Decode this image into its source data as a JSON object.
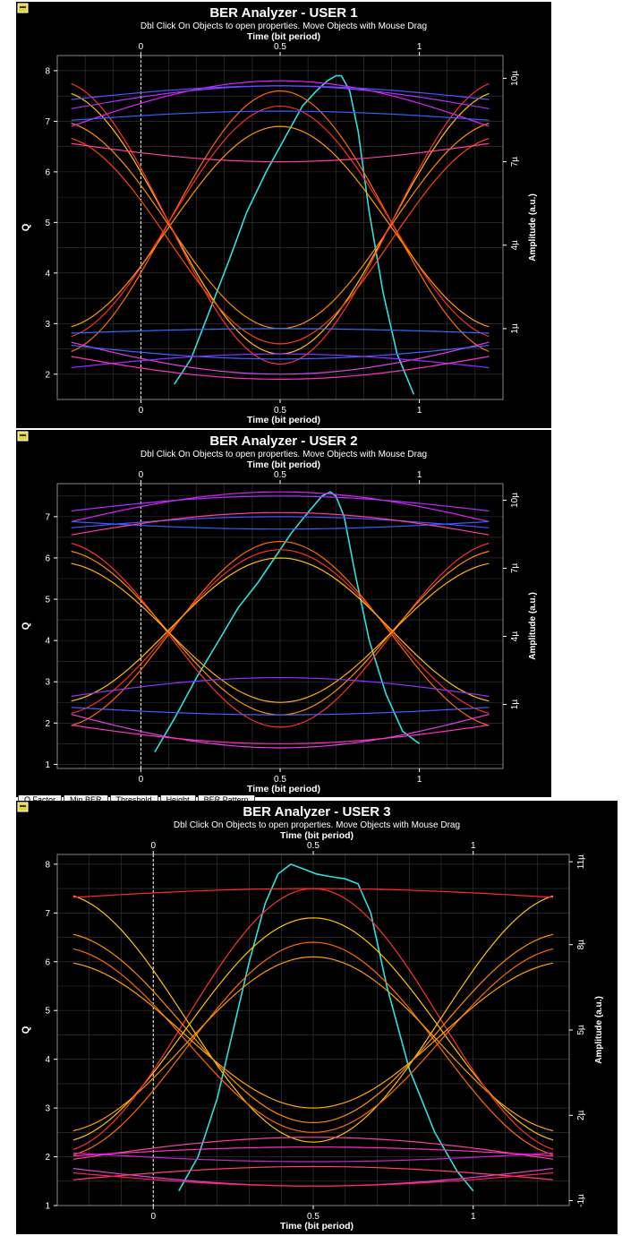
{
  "common": {
    "subtitle": "Dbl Click On Objects to open properties.  Move Objects with Mouse Drag",
    "top_xlabel": "Time (bit period)",
    "bottom_xlabel": "Time (bit period)",
    "left_ylabel": "Q",
    "right_ylabel": "Amplitude (a.u.)",
    "x_ticks": [
      0,
      0.5,
      1
    ],
    "x_tick_labels": [
      "0",
      "0.5",
      "1"
    ]
  },
  "tab_strip": {
    "tabs": [
      "Q Factor",
      "Min BER",
      "Threshold",
      "Height",
      "BER Pattern"
    ]
  },
  "colors": {
    "background": "#000000",
    "grid": "#3a3a3a",
    "axis": "#ffffff",
    "q_curve": "#2ee0e0"
  },
  "chart_data": [
    {
      "type": "line",
      "title": "BER Analyzer - USER 1",
      "xlim": [
        -0.3,
        1.3
      ],
      "ylim": [
        1.5,
        8.3
      ],
      "y_ticks": [
        2,
        3,
        4,
        5,
        6,
        7,
        8
      ],
      "right_ticks": [
        {
          "label": "1µ",
          "q": 2.9
        },
        {
          "label": "4µ",
          "q": 4.55
        },
        {
          "label": "7µ",
          "q": 6.2
        },
        {
          "label": "10µ",
          "q": 7.85
        }
      ],
      "series": [
        {
          "color": "#2ee0e0",
          "kind": "q",
          "x": [
            0.12,
            0.18,
            0.25,
            0.32,
            0.38,
            0.45,
            0.52,
            0.58,
            0.63,
            0.67,
            0.7,
            0.72,
            0.75,
            0.78,
            0.82,
            0.87,
            0.92,
            0.98
          ],
          "y": [
            1.8,
            2.3,
            3.3,
            4.3,
            5.2,
            6.0,
            6.7,
            7.3,
            7.6,
            7.8,
            7.9,
            7.9,
            7.6,
            6.8,
            5.2,
            3.6,
            2.4,
            1.6
          ]
        },
        {
          "color": "#ff6a00",
          "kind": "lh",
          "lo": 2.4,
          "hi": 7.6
        },
        {
          "color": "#ff2a2a",
          "kind": "lh",
          "lo": 2.7,
          "hi": 7.3
        },
        {
          "color": "#ff9a00",
          "kind": "lh",
          "lo": 2.9,
          "hi": 6.9
        },
        {
          "color": "#ffc400",
          "kind": "hl",
          "hi": 7.6,
          "lo": 2.4
        },
        {
          "color": "#ff8c00",
          "kind": "hl",
          "hi": 7.0,
          "lo": 2.9
        },
        {
          "color": "#ff3030",
          "kind": "hl",
          "hi": 7.8,
          "lo": 2.2
        },
        {
          "color": "#ff4400",
          "kind": "hl",
          "hi": 6.7,
          "lo": 2.6
        },
        {
          "color": "#e020ff",
          "kind": "hh",
          "base": 6.8,
          "amp": 1.0
        },
        {
          "color": "#b030ff",
          "kind": "hh",
          "base": 7.2,
          "amp": 0.5
        },
        {
          "color": "#5050ff",
          "kind": "hh",
          "base": 7.4,
          "amp": 0.3
        },
        {
          "color": "#ff3fa0",
          "kind": "hh",
          "base": 6.6,
          "amp": -0.4
        },
        {
          "color": "#3060ff",
          "kind": "hh",
          "base": 7.0,
          "amp": 0.2
        },
        {
          "color": "#e040e0",
          "kind": "ll",
          "base": 2.7,
          "amp": -0.7
        },
        {
          "color": "#4060ff",
          "kind": "ll",
          "base": 2.6,
          "amp": -0.3
        },
        {
          "color": "#9030ff",
          "kind": "ll",
          "base": 2.1,
          "amp": 0.3
        },
        {
          "color": "#3070ff",
          "kind": "ll",
          "base": 2.8,
          "amp": 0.1
        },
        {
          "color": "#ff30c0",
          "kind": "ll",
          "base": 2.4,
          "amp": -0.5
        }
      ]
    },
    {
      "type": "line",
      "title": "BER Analyzer - USER 2",
      "xlim": [
        -0.3,
        1.3
      ],
      "ylim": [
        0.9,
        7.8
      ],
      "y_ticks": [
        1,
        2,
        3,
        4,
        5,
        6,
        7
      ],
      "right_ticks": [
        {
          "label": "1µ",
          "q": 2.45
        },
        {
          "label": "4µ",
          "q": 4.1
        },
        {
          "label": "7µ",
          "q": 5.75
        },
        {
          "label": "10µ",
          "q": 7.4
        }
      ],
      "series": [
        {
          "color": "#2ee0e0",
          "kind": "q",
          "x": [
            0.05,
            0.12,
            0.2,
            0.28,
            0.35,
            0.42,
            0.48,
            0.54,
            0.6,
            0.65,
            0.68,
            0.7,
            0.73,
            0.77,
            0.82,
            0.88,
            0.94,
            1.0
          ],
          "y": [
            1.3,
            2.1,
            3.1,
            4.0,
            4.8,
            5.4,
            6.0,
            6.6,
            7.1,
            7.5,
            7.6,
            7.5,
            7.0,
            5.6,
            4.0,
            2.7,
            1.8,
            1.5
          ]
        },
        {
          "color": "#ff6a00",
          "kind": "lh",
          "lo": 1.9,
          "hi": 6.4
        },
        {
          "color": "#ff2a2a",
          "kind": "lh",
          "lo": 2.2,
          "hi": 6.2
        },
        {
          "color": "#ffc400",
          "kind": "lh",
          "lo": 2.5,
          "hi": 6.0
        },
        {
          "color": "#ff3030",
          "kind": "hl",
          "hi": 6.4,
          "lo": 1.9
        },
        {
          "color": "#ff8c00",
          "kind": "hl",
          "hi": 6.2,
          "lo": 2.2
        },
        {
          "color": "#ffb000",
          "kind": "hl",
          "hi": 5.9,
          "lo": 2.5
        },
        {
          "color": "#e020ff",
          "kind": "hh",
          "base": 6.8,
          "amp": 0.8
        },
        {
          "color": "#5050ff",
          "kind": "hh",
          "base": 6.7,
          "amp": 0.3
        },
        {
          "color": "#3060ff",
          "kind": "hh",
          "base": 6.9,
          "amp": -0.2
        },
        {
          "color": "#b030ff",
          "kind": "hh",
          "base": 7.1,
          "amp": 0.4
        },
        {
          "color": "#ff3fa0",
          "kind": "hh",
          "base": 6.5,
          "amp": 0.6
        },
        {
          "color": "#e040e0",
          "kind": "ll",
          "base": 2.3,
          "amp": -0.9
        },
        {
          "color": "#9030ff",
          "kind": "ll",
          "base": 2.6,
          "amp": 0.5
        },
        {
          "color": "#4060ff",
          "kind": "ll",
          "base": 2.4,
          "amp": -0.2
        },
        {
          "color": "#ff30c0",
          "kind": "ll",
          "base": 2.0,
          "amp": -0.5
        }
      ]
    },
    {
      "type": "line",
      "title": "BER Analyzer - USER 3",
      "xlim": [
        -0.3,
        1.3
      ],
      "ylim": [
        1.0,
        8.2
      ],
      "y_ticks": [
        1,
        2,
        3,
        4,
        5,
        6,
        7,
        8
      ],
      "right_ticks": [
        {
          "label": "-1µ",
          "q": 1.1
        },
        {
          "label": "2µ",
          "q": 2.85
        },
        {
          "label": "5µ",
          "q": 4.6
        },
        {
          "label": "8µ",
          "q": 6.35
        },
        {
          "label": "11µ",
          "q": 8.05
        }
      ],
      "series": [
        {
          "color": "#2ee0e0",
          "kind": "q",
          "x": [
            0.08,
            0.14,
            0.2,
            0.25,
            0.3,
            0.35,
            0.39,
            0.43,
            0.47,
            0.51,
            0.55,
            0.6,
            0.64,
            0.68,
            0.73,
            0.8,
            0.88,
            0.95,
            1.0
          ],
          "y": [
            1.3,
            2.0,
            3.2,
            4.6,
            6.0,
            7.2,
            7.8,
            8.0,
            7.9,
            7.8,
            7.75,
            7.7,
            7.6,
            7.0,
            5.5,
            3.8,
            2.5,
            1.7,
            1.3
          ]
        },
        {
          "color": "#ff6a00",
          "kind": "lh",
          "lo": 2.0,
          "hi": 6.4
        },
        {
          "color": "#ffc400",
          "kind": "lh",
          "lo": 2.3,
          "hi": 6.9
        },
        {
          "color": "#ff9a00",
          "kind": "lh",
          "lo": 2.5,
          "hi": 6.1
        },
        {
          "color": "#ff3030",
          "kind": "lh",
          "lo": 2.1,
          "hi": 7.5
        },
        {
          "color": "#ffc400",
          "kind": "hl",
          "hi": 7.4,
          "lo": 2.3
        },
        {
          "color": "#ff8c00",
          "kind": "hl",
          "hi": 6.6,
          "lo": 2.7
        },
        {
          "color": "#ff6a00",
          "kind": "hl",
          "hi": 6.3,
          "lo": 2.5
        },
        {
          "color": "#ffa500",
          "kind": "hl",
          "hi": 6.0,
          "lo": 3.0
        },
        {
          "color": "#ff2a2a",
          "kind": "hh",
          "base": 7.3,
          "amp": 0.2
        },
        {
          "color": "#ff3fa0",
          "kind": "ll",
          "base": 1.9,
          "amp": 0.5
        },
        {
          "color": "#e040e0",
          "kind": "ll",
          "base": 1.8,
          "amp": -0.4
        },
        {
          "color": "#ff30c0",
          "kind": "ll",
          "base": 2.0,
          "amp": 0.2
        },
        {
          "color": "#ff4070",
          "kind": "ll",
          "base": 1.5,
          "amp": 0.3
        },
        {
          "color": "#d020d0",
          "kind": "ll",
          "base": 2.1,
          "amp": -0.2
        },
        {
          "color": "#ff2060",
          "kind": "ll",
          "base": 1.7,
          "amp": -0.3
        }
      ]
    }
  ]
}
